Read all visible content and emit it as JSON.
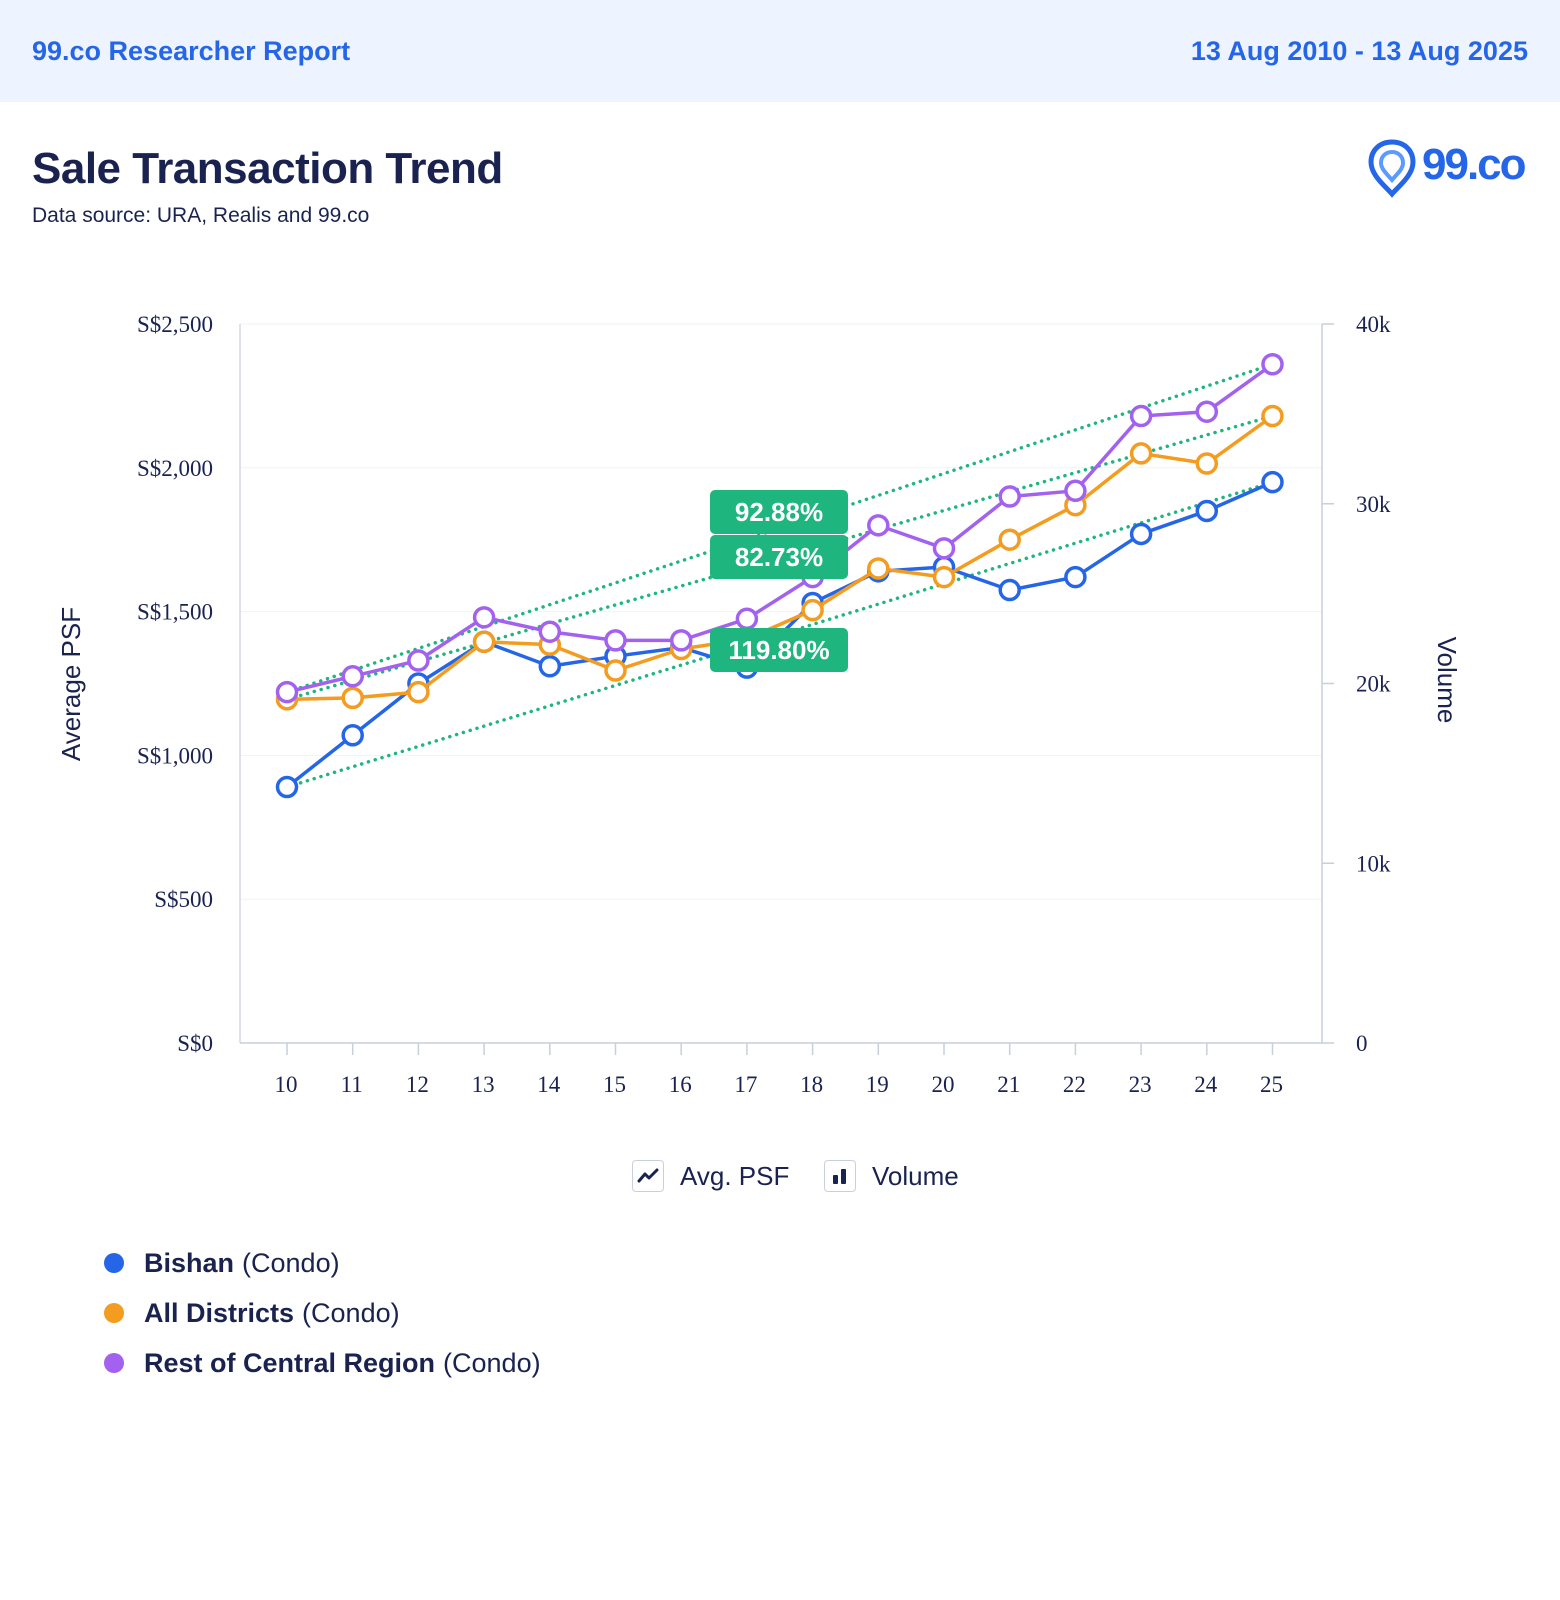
{
  "header": {
    "brand": "99.co Researcher Report",
    "date_range": "13 Aug 2010 - 13 Aug 2025"
  },
  "title": "Sale Transaction Trend",
  "source": "Data source: URA, Realis and 99.co",
  "logo_text": "99.co",
  "toggles": {
    "psf_label": "Avg. PSF",
    "volume_label": "Volume"
  },
  "legend": [
    {
      "name": "Bishan",
      "type": "(Condo)",
      "color": "#2566e8"
    },
    {
      "name": "All Districts",
      "type": "(Condo)",
      "color": "#f39c1f"
    },
    {
      "name": "Rest of Central Region",
      "type": "(Condo)",
      "color": "#a361f0"
    }
  ],
  "chart_data": {
    "type": "line",
    "y_left_label": "Average PSF",
    "y_right_label": "Volume",
    "categories": [
      "10",
      "11",
      "12",
      "13",
      "14",
      "15",
      "16",
      "17",
      "18",
      "19",
      "20",
      "21",
      "22",
      "23",
      "24",
      "25"
    ],
    "y_left_ticks": [
      "S$0",
      "S$500",
      "S$1,000",
      "S$1,500",
      "S$2,000",
      "S$2,500"
    ],
    "y_left_range": [
      0,
      2500
    ],
    "y_right_ticks": [
      "0",
      "10k",
      "20k",
      "30k",
      "40k"
    ],
    "y_right_range": [
      0,
      40000
    ],
    "grid": true,
    "series": [
      {
        "name": "Bishan",
        "color": "#2566e8",
        "values": [
          890,
          1070,
          1250,
          1395,
          1310,
          1345,
          1375,
          1305,
          1530,
          1640,
          1655,
          1575,
          1620,
          1770,
          1850,
          1950
        ],
        "trend": [
          890,
          1950
        ],
        "growth_label": "119.80%"
      },
      {
        "name": "All Districts",
        "color": "#f39c1f",
        "values": [
          1195,
          1200,
          1220,
          1395,
          1385,
          1295,
          1370,
          1405,
          1505,
          1650,
          1620,
          1750,
          1870,
          2050,
          2015,
          2180
        ],
        "trend": [
          1195,
          2180
        ],
        "growth_label": "82.73%"
      },
      {
        "name": "Rest of Central Region",
        "color": "#a361f0",
        "values": [
          1220,
          1275,
          1330,
          1480,
          1430,
          1400,
          1400,
          1475,
          1620,
          1800,
          1720,
          1900,
          1920,
          2180,
          2195,
          2360
        ],
        "trend": [
          1220,
          2360
        ],
        "growth_label": "92.88%"
      }
    ]
  }
}
